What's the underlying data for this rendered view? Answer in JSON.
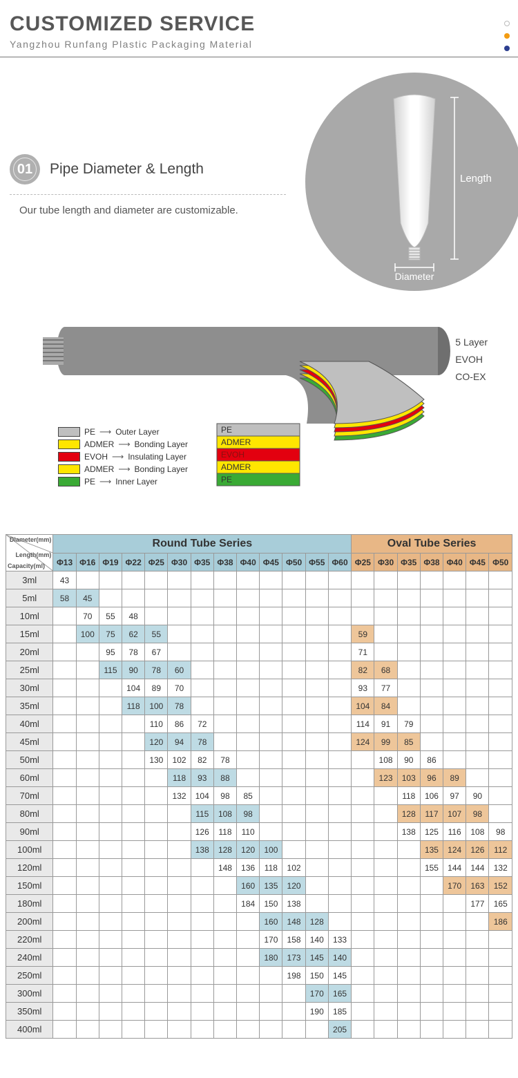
{
  "header": {
    "title": "CUSTOMIZED SERVICE",
    "subtitle": "Yangzhou Runfang Plastic Packaging Material"
  },
  "section1": {
    "badge": "01",
    "title": "Pipe Diameter & Length",
    "desc": "Our tube length and diameter are customizable.",
    "label_length": "Length",
    "label_diameter": "Diameter"
  },
  "layers": {
    "side_labels": [
      "5 Layer",
      "EVOH",
      "CO-EX"
    ],
    "legend": [
      {
        "color": "#bfbfbf",
        "mat": "PE",
        "role": "Outer Layer"
      },
      {
        "color": "#ffe600",
        "mat": "ADMER",
        "role": "Bonding Layer"
      },
      {
        "color": "#e3000f",
        "mat": "EVOH",
        "role": "Insulating Layer"
      },
      {
        "color": "#ffe600",
        "mat": "ADMER",
        "role": "Bonding Layer"
      },
      {
        "color": "#3aaa35",
        "mat": "PE",
        "role": "Inner Layer"
      }
    ],
    "stack_labels": [
      "PE",
      "ADMER",
      "EVOH",
      "ADMER",
      "PE"
    ],
    "stack_colors": [
      "#bfbfbf",
      "#ffe600",
      "#e3000f",
      "#ffe600",
      "#3aaa35"
    ],
    "stack_label_colors": [
      "#333",
      "#333",
      "#8a1010",
      "#333",
      "#333"
    ],
    "tube_color": "#8e8e8e"
  },
  "table": {
    "corner_labels": [
      "Diameter(mm)",
      "Length(mm)",
      "Capacity(ml)"
    ],
    "round_title": "Round Tube Series",
    "oval_title": "Oval Tube Series",
    "round_diameters": [
      "Φ13",
      "Φ16",
      "Φ19",
      "Φ22",
      "Φ25",
      "Φ30",
      "Φ35",
      "Φ38",
      "Φ40",
      "Φ45",
      "Φ50",
      "Φ55",
      "Φ60"
    ],
    "oval_diameters": [
      "Φ25",
      "Φ30",
      "Φ35",
      "Φ38",
      "Φ40",
      "Φ45",
      "Φ50"
    ],
    "colors": {
      "round_header": "#a8cdd9",
      "oval_header": "#e8b786",
      "round_shade": "#bedbe4",
      "oval_shade": "#eec69a",
      "capacity_bg": "#e9e9e9",
      "border": "#999999"
    },
    "rows": [
      {
        "cap": "3ml",
        "shade": true,
        "round": [
          "43",
          "",
          "",
          "",
          "",
          "",
          "",
          "",
          "",
          "",
          "",
          "",
          ""
        ],
        "oval": [
          "",
          "",
          "",
          "",
          "",
          "",
          ""
        ]
      },
      {
        "cap": "5ml",
        "shade": false,
        "round": [
          "58",
          "45",
          "",
          "",
          "",
          "",
          "",
          "",
          "",
          "",
          "",
          "",
          ""
        ],
        "oval": [
          "",
          "",
          "",
          "",
          "",
          "",
          ""
        ]
      },
      {
        "cap": "10ml",
        "shade": true,
        "round": [
          "",
          "70",
          "55",
          "48",
          "",
          "",
          "",
          "",
          "",
          "",
          "",
          "",
          ""
        ],
        "oval": [
          "",
          "",
          "",
          "",
          "",
          "",
          ""
        ]
      },
      {
        "cap": "15ml",
        "shade": false,
        "round": [
          "",
          "100",
          "75",
          "62",
          "55",
          "",
          "",
          "",
          "",
          "",
          "",
          "",
          ""
        ],
        "oval": [
          "59",
          "",
          "",
          "",
          "",
          "",
          ""
        ]
      },
      {
        "cap": "20ml",
        "shade": true,
        "round": [
          "",
          "",
          "95",
          "78",
          "67",
          "",
          "",
          "",
          "",
          "",
          "",
          "",
          ""
        ],
        "oval": [
          "71",
          "",
          "",
          "",
          "",
          "",
          ""
        ]
      },
      {
        "cap": "25ml",
        "shade": false,
        "round": [
          "",
          "",
          "115",
          "90",
          "78",
          "60",
          "",
          "",
          "",
          "",
          "",
          "",
          ""
        ],
        "oval": [
          "82",
          "68",
          "",
          "",
          "",
          "",
          ""
        ]
      },
      {
        "cap": "30ml",
        "shade": true,
        "round": [
          "",
          "",
          "",
          "104",
          "89",
          "70",
          "",
          "",
          "",
          "",
          "",
          "",
          ""
        ],
        "oval": [
          "93",
          "77",
          "",
          "",
          "",
          "",
          ""
        ]
      },
      {
        "cap": "35ml",
        "shade": false,
        "round": [
          "",
          "",
          "",
          "118",
          "100",
          "78",
          "",
          "",
          "",
          "",
          "",
          "",
          ""
        ],
        "oval": [
          "104",
          "84",
          "",
          "",
          "",
          "",
          ""
        ]
      },
      {
        "cap": "40ml",
        "shade": true,
        "round": [
          "",
          "",
          "",
          "",
          "110",
          "86",
          "72",
          "",
          "",
          "",
          "",
          "",
          ""
        ],
        "oval": [
          "114",
          "91",
          "79",
          "",
          "",
          "",
          ""
        ]
      },
      {
        "cap": "45ml",
        "shade": false,
        "round": [
          "",
          "",
          "",
          "",
          "120",
          "94",
          "78",
          "",
          "",
          "",
          "",
          "",
          ""
        ],
        "oval": [
          "124",
          "99",
          "85",
          "",
          "",
          "",
          ""
        ]
      },
      {
        "cap": "50ml",
        "shade": true,
        "round": [
          "",
          "",
          "",
          "",
          "130",
          "102",
          "82",
          "78",
          "",
          "",
          "",
          "",
          ""
        ],
        "oval": [
          "",
          "108",
          "90",
          "86",
          "",
          "",
          ""
        ]
      },
      {
        "cap": "60ml",
        "shade": false,
        "round": [
          "",
          "",
          "",
          "",
          "",
          "118",
          "93",
          "88",
          "",
          "",
          "",
          "",
          ""
        ],
        "oval": [
          "",
          "123",
          "103",
          "96",
          "89",
          "",
          ""
        ]
      },
      {
        "cap": "70ml",
        "shade": true,
        "round": [
          "",
          "",
          "",
          "",
          "",
          "132",
          "104",
          "98",
          "85",
          "",
          "",
          "",
          ""
        ],
        "oval": [
          "",
          "",
          "118",
          "106",
          "97",
          "90",
          ""
        ]
      },
      {
        "cap": "80ml",
        "shade": false,
        "round": [
          "",
          "",
          "",
          "",
          "",
          "",
          "115",
          "108",
          "98",
          "",
          "",
          "",
          ""
        ],
        "oval": [
          "",
          "",
          "128",
          "117",
          "107",
          "98",
          ""
        ]
      },
      {
        "cap": "90ml",
        "shade": true,
        "round": [
          "",
          "",
          "",
          "",
          "",
          "",
          "126",
          "118",
          "110",
          "",
          "",
          "",
          ""
        ],
        "oval": [
          "",
          "",
          "138",
          "125",
          "116",
          "108",
          "98"
        ]
      },
      {
        "cap": "100ml",
        "shade": false,
        "round": [
          "",
          "",
          "",
          "",
          "",
          "",
          "138",
          "128",
          "120",
          "100",
          "",
          "",
          ""
        ],
        "oval": [
          "",
          "",
          "",
          "135",
          "124",
          "126",
          "112"
        ]
      },
      {
        "cap": "120ml",
        "shade": true,
        "round": [
          "",
          "",
          "",
          "",
          "",
          "",
          "",
          "148",
          "136",
          "118",
          "102",
          "",
          ""
        ],
        "oval": [
          "",
          "",
          "",
          "155",
          "144",
          "144",
          "132"
        ]
      },
      {
        "cap": "150ml",
        "shade": false,
        "round": [
          "",
          "",
          "",
          "",
          "",
          "",
          "",
          "",
          "160",
          "135",
          "120",
          "",
          ""
        ],
        "oval": [
          "",
          "",
          "",
          "",
          "170",
          "163",
          "152"
        ]
      },
      {
        "cap": "180ml",
        "shade": true,
        "round": [
          "",
          "",
          "",
          "",
          "",
          "",
          "",
          "",
          "184",
          "150",
          "138",
          "",
          ""
        ],
        "oval": [
          "",
          "",
          "",
          "",
          "",
          "177",
          "165"
        ]
      },
      {
        "cap": "200ml",
        "shade": false,
        "round": [
          "",
          "",
          "",
          "",
          "",
          "",
          "",
          "",
          "",
          "160",
          "148",
          "128",
          ""
        ],
        "oval": [
          "",
          "",
          "",
          "",
          "",
          "",
          "186"
        ]
      },
      {
        "cap": "220ml",
        "shade": true,
        "round": [
          "",
          "",
          "",
          "",
          "",
          "",
          "",
          "",
          "",
          "170",
          "158",
          "140",
          "133"
        ],
        "oval": [
          "",
          "",
          "",
          "",
          "",
          "",
          ""
        ]
      },
      {
        "cap": "240ml",
        "shade": false,
        "round": [
          "",
          "",
          "",
          "",
          "",
          "",
          "",
          "",
          "",
          "180",
          "173",
          "145",
          "140"
        ],
        "oval": [
          "",
          "",
          "",
          "",
          "",
          "",
          ""
        ]
      },
      {
        "cap": "250ml",
        "shade": true,
        "round": [
          "",
          "",
          "",
          "",
          "",
          "",
          "",
          "",
          "",
          "",
          "198",
          "150",
          "145"
        ],
        "oval": [
          "",
          "",
          "",
          "",
          "",
          "",
          ""
        ]
      },
      {
        "cap": "300ml",
        "shade": false,
        "round": [
          "",
          "",
          "",
          "",
          "",
          "",
          "",
          "",
          "",
          "",
          "",
          "170",
          "165"
        ],
        "oval": [
          "",
          "",
          "",
          "",
          "",
          "",
          ""
        ]
      },
      {
        "cap": "350ml",
        "shade": true,
        "round": [
          "",
          "",
          "",
          "",
          "",
          "",
          "",
          "",
          "",
          "",
          "",
          "190",
          "185"
        ],
        "oval": [
          "",
          "",
          "",
          "",
          "",
          "",
          ""
        ]
      },
      {
        "cap": "400ml",
        "shade": false,
        "round": [
          "",
          "",
          "",
          "",
          "",
          "",
          "",
          "",
          "",
          "",
          "",
          "",
          "205"
        ],
        "oval": [
          "",
          "",
          "",
          "",
          "",
          "",
          ""
        ]
      }
    ]
  }
}
